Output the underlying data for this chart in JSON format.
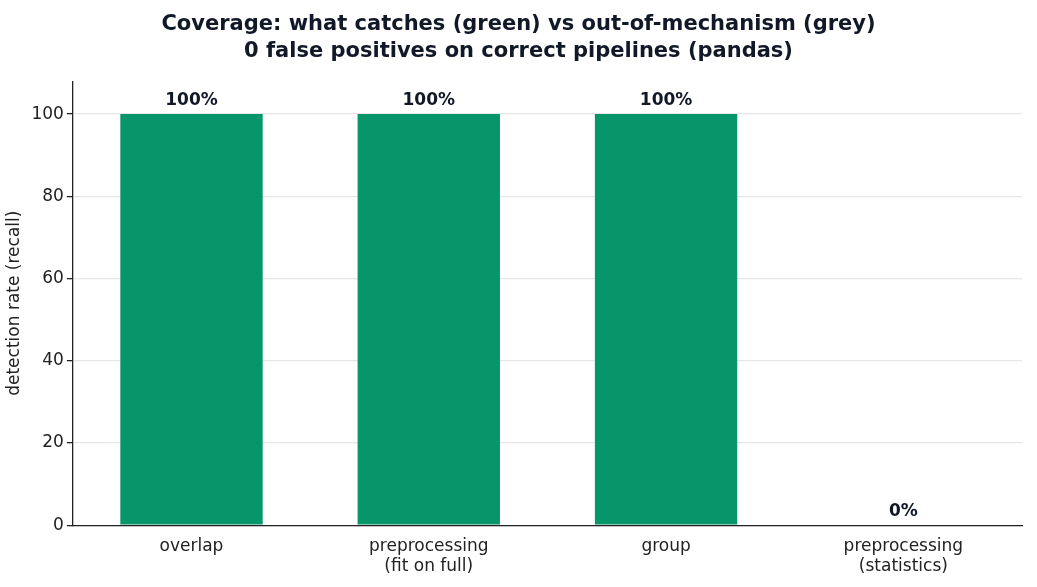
{
  "chart_data": {
    "type": "bar",
    "title": "Coverage: what catches (green) vs out-of-mechanism (grey)",
    "subtitle": "0 false positives on correct pipelines (pandas)",
    "ylabel": "detection rate (recall)",
    "categories": [
      [
        "overlap"
      ],
      [
        "preprocessing",
        "(fit on full)"
      ],
      [
        "group"
      ],
      [
        "preprocessing",
        "(statistics)"
      ]
    ],
    "values": [
      100,
      100,
      100,
      0
    ],
    "color": "#069669",
    "value_labels": [
      "100%",
      "100%",
      "100%",
      "0%"
    ],
    "ylim": [
      0,
      108
    ],
    "yticks": [
      0,
      20,
      40,
      60,
      80,
      100
    ],
    "grid": "y",
    "legend": false
  }
}
